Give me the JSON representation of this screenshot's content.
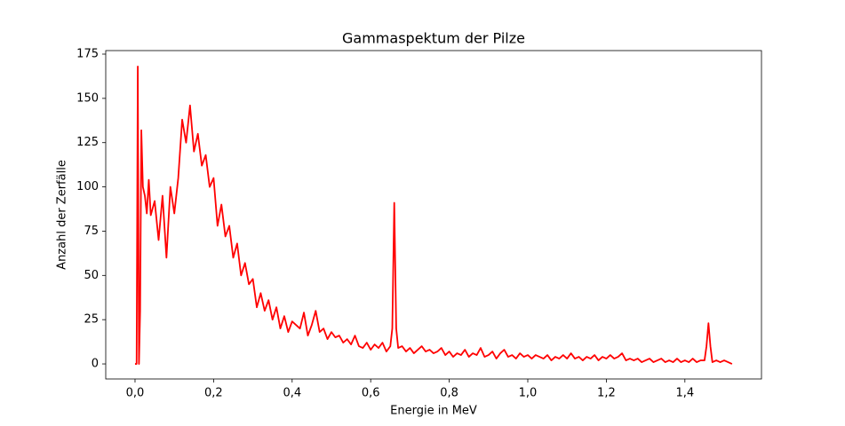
{
  "chart_data": {
    "type": "line",
    "title": "Gammaspektum der Pilze",
    "x_label": "Energie in MeV",
    "y_label": "Anzahl der Zerfälle",
    "color": "#ff0000",
    "x": [
      0,
      0.004,
      0.007,
      0.01,
      0.013,
      0.016,
      0.02,
      0.025,
      0.03,
      0.035,
      0.04,
      0.05,
      0.06,
      0.07,
      0.08,
      0.09,
      0.1,
      0.11,
      0.12,
      0.13,
      0.14,
      0.15,
      0.16,
      0.17,
      0.18,
      0.19,
      0.2,
      0.21,
      0.22,
      0.23,
      0.24,
      0.25,
      0.26,
      0.27,
      0.28,
      0.29,
      0.3,
      0.31,
      0.32,
      0.33,
      0.34,
      0.35,
      0.36,
      0.37,
      0.38,
      0.39,
      0.4,
      0.41,
      0.42,
      0.43,
      0.44,
      0.45,
      0.46,
      0.47,
      0.48,
      0.49,
      0.5,
      0.51,
      0.52,
      0.53,
      0.54,
      0.55,
      0.56,
      0.57,
      0.58,
      0.59,
      0.6,
      0.61,
      0.62,
      0.63,
      0.64,
      0.65,
      0.655,
      0.66,
      0.665,
      0.67,
      0.68,
      0.69,
      0.7,
      0.71,
      0.72,
      0.73,
      0.74,
      0.75,
      0.76,
      0.77,
      0.78,
      0.79,
      0.8,
      0.81,
      0.82,
      0.83,
      0.84,
      0.85,
      0.86,
      0.87,
      0.88,
      0.89,
      0.9,
      0.91,
      0.92,
      0.93,
      0.94,
      0.95,
      0.96,
      0.97,
      0.98,
      0.99,
      1.0,
      1.01,
      1.02,
      1.03,
      1.04,
      1.05,
      1.06,
      1.07,
      1.08,
      1.09,
      1.1,
      1.11,
      1.12,
      1.13,
      1.14,
      1.15,
      1.16,
      1.17,
      1.18,
      1.19,
      1.2,
      1.21,
      1.22,
      1.23,
      1.24,
      1.25,
      1.26,
      1.27,
      1.28,
      1.29,
      1.3,
      1.31,
      1.32,
      1.33,
      1.34,
      1.35,
      1.36,
      1.37,
      1.38,
      1.39,
      1.4,
      1.41,
      1.42,
      1.43,
      1.44,
      1.45,
      1.455,
      1.46,
      1.465,
      1.47,
      1.48,
      1.49,
      1.5,
      1.51,
      1.52
    ],
    "values": [
      0,
      0,
      168,
      0,
      30,
      132,
      100,
      95,
      85,
      104,
      84,
      92,
      70,
      95,
      60,
      100,
      85,
      105,
      138,
      125,
      146,
      120,
      130,
      112,
      118,
      100,
      105,
      78,
      90,
      72,
      78,
      60,
      68,
      50,
      57,
      45,
      48,
      32,
      40,
      30,
      36,
      25,
      32,
      20,
      27,
      18,
      24,
      22,
      20,
      29,
      16,
      22,
      30,
      18,
      20,
      14,
      18,
      15,
      16,
      12,
      14,
      11,
      16,
      10,
      9,
      12,
      8,
      11,
      9,
      12,
      7,
      10,
      20,
      91,
      20,
      9,
      10,
      7,
      9,
      6,
      8,
      10,
      7,
      8,
      6,
      7,
      9,
      5,
      7,
      4,
      6,
      5,
      8,
      4,
      6,
      5,
      9,
      4,
      5,
      7,
      3,
      6,
      8,
      4,
      5,
      3,
      6,
      4,
      5,
      3,
      5,
      4,
      3,
      5,
      2,
      4,
      3,
      5,
      3,
      6,
      3,
      4,
      2,
      4,
      3,
      5,
      2,
      4,
      3,
      5,
      3,
      4,
      6,
      2,
      3,
      2,
      3,
      1,
      2,
      3,
      1,
      2,
      3,
      1,
      2,
      1,
      3,
      1,
      2,
      1,
      3,
      1,
      2,
      2,
      10,
      23,
      10,
      1,
      2,
      1,
      2,
      1,
      0
    ],
    "xlim": [
      -0.0746,
      1.595
    ],
    "ylim": [
      -8.5,
      177
    ],
    "xticks": [
      {
        "value": 0,
        "label": "0,0"
      },
      {
        "value": 0.2,
        "label": "0,2"
      },
      {
        "value": 0.4,
        "label": "0,4"
      },
      {
        "value": 0.6,
        "label": "0,6"
      },
      {
        "value": 0.8,
        "label": "0,8"
      },
      {
        "value": 1.0,
        "label": "1,0"
      },
      {
        "value": 1.2,
        "label": "1,2"
      },
      {
        "value": 1.4,
        "label": "1,4"
      }
    ],
    "yticks": [
      0,
      25,
      50,
      75,
      100,
      125,
      150,
      175
    ]
  }
}
